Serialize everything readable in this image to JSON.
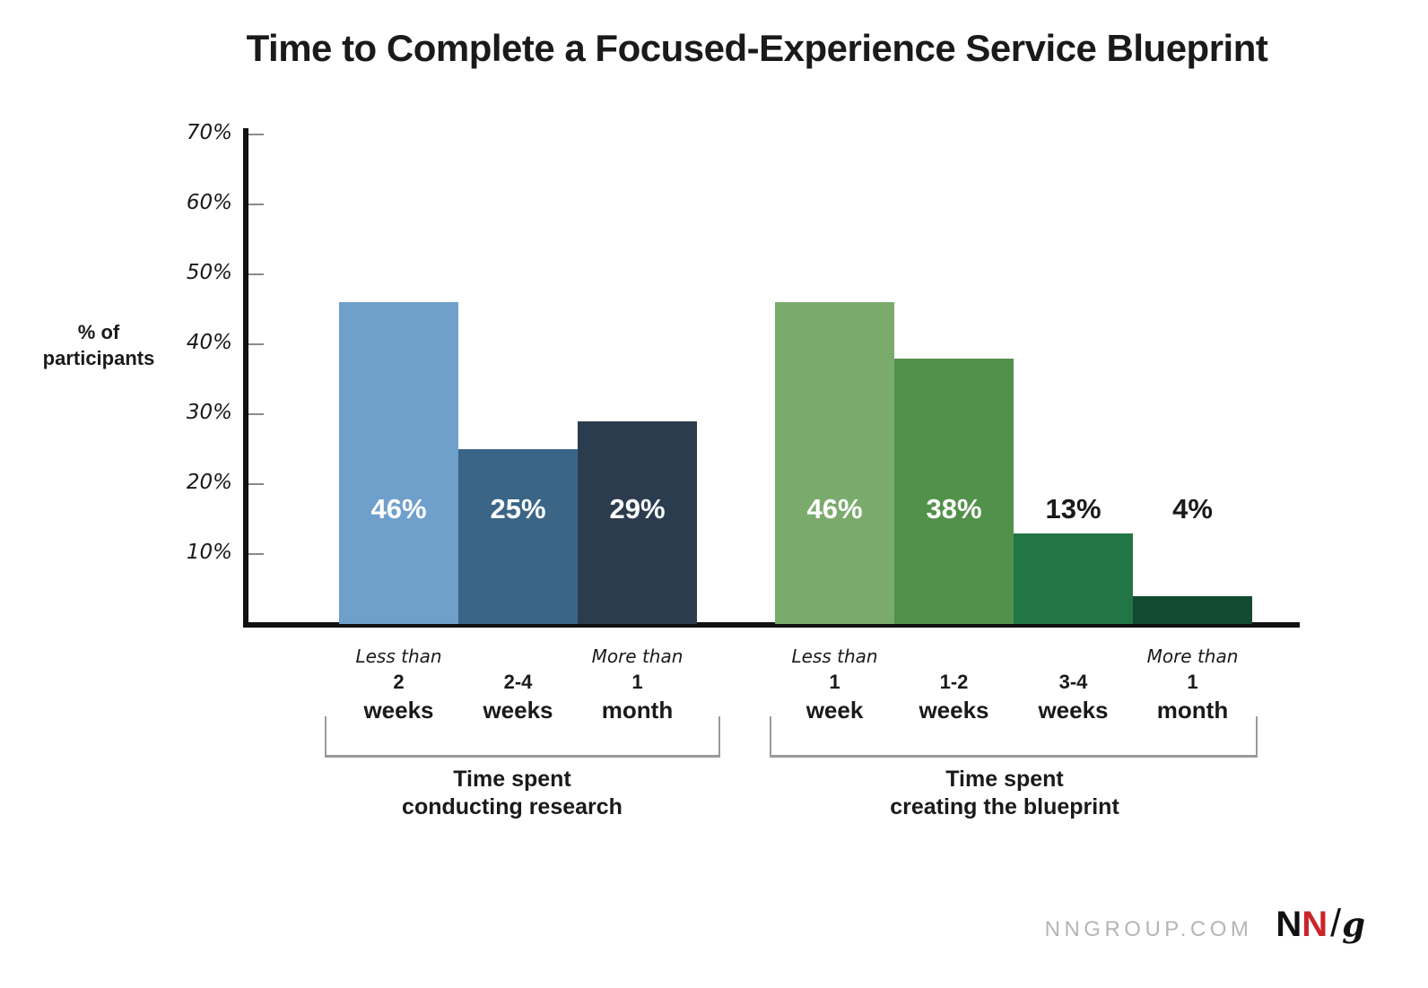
{
  "chart_data": {
    "type": "bar",
    "title": "Time to Complete a Focused-Experience Service Blueprint",
    "ylabel": "% of participants",
    "ylabel_lines": [
      "% of",
      "participants"
    ],
    "ylim": [
      0,
      70
    ],
    "grid": false,
    "yticks": [
      {
        "value": 10,
        "label": "10%"
      },
      {
        "value": 20,
        "label": "20%"
      },
      {
        "value": 30,
        "label": "30%"
      },
      {
        "value": 40,
        "label": "40%"
      },
      {
        "value": 50,
        "label": "50%"
      },
      {
        "value": 60,
        "label": "60%"
      },
      {
        "value": 70,
        "label": "70%"
      }
    ],
    "groups": [
      {
        "caption": [
          "Time spent",
          "conducting research"
        ],
        "bars": [
          {
            "value": 46,
            "label": "46%",
            "color": "#6f9fcb",
            "label_color": "#ffffff",
            "tick": {
              "prefix": "Less than",
              "line1": "2",
              "line2": "weeks"
            }
          },
          {
            "value": 25,
            "label": "25%",
            "color": "#3a6587",
            "label_color": "#ffffff",
            "tick": {
              "prefix": "",
              "line1": "2-4",
              "line2": "weeks"
            }
          },
          {
            "value": 29,
            "label": "29%",
            "color": "#2b3c4e",
            "label_color": "#ffffff",
            "tick": {
              "prefix": "More than",
              "line1": "1",
              "line2": "month"
            }
          }
        ]
      },
      {
        "caption": [
          "Time spent",
          "creating the blueprint"
        ],
        "bars": [
          {
            "value": 46,
            "label": "46%",
            "color": "#7aab6d",
            "label_color": "#ffffff",
            "tick": {
              "prefix": "Less than",
              "line1": "1",
              "line2": "week"
            }
          },
          {
            "value": 38,
            "label": "38%",
            "color": "#52914a",
            "label_color": "#ffffff",
            "tick": {
              "prefix": "",
              "line1": "1-2",
              "line2": "weeks"
            }
          },
          {
            "value": 13,
            "label": "13%",
            "color": "#227545",
            "label_color": "#1a1a1a",
            "tick": {
              "prefix": "",
              "line1": "3-4",
              "line2": "weeks"
            }
          },
          {
            "value": 4,
            "label": "4%",
            "color": "#114931",
            "label_color": "#1a1a1a",
            "tick": {
              "prefix": "More than",
              "line1": "1",
              "line2": "month"
            }
          }
        ]
      }
    ]
  },
  "footer": {
    "site_label": "NNGROUP.COM",
    "logo_n1": "N",
    "logo_n2": "N",
    "logo_slash": "/",
    "logo_g": "g"
  },
  "palette": {
    "axis": "#111111",
    "tick_mark": "#8a8a8a",
    "bracket": "#9a9a9a",
    "title_text": "#1a1a1a",
    "site_gray": "#b5b5b5",
    "logo_red": "#c9252b",
    "logo_black": "#111111",
    "background": "#ffffff"
  }
}
